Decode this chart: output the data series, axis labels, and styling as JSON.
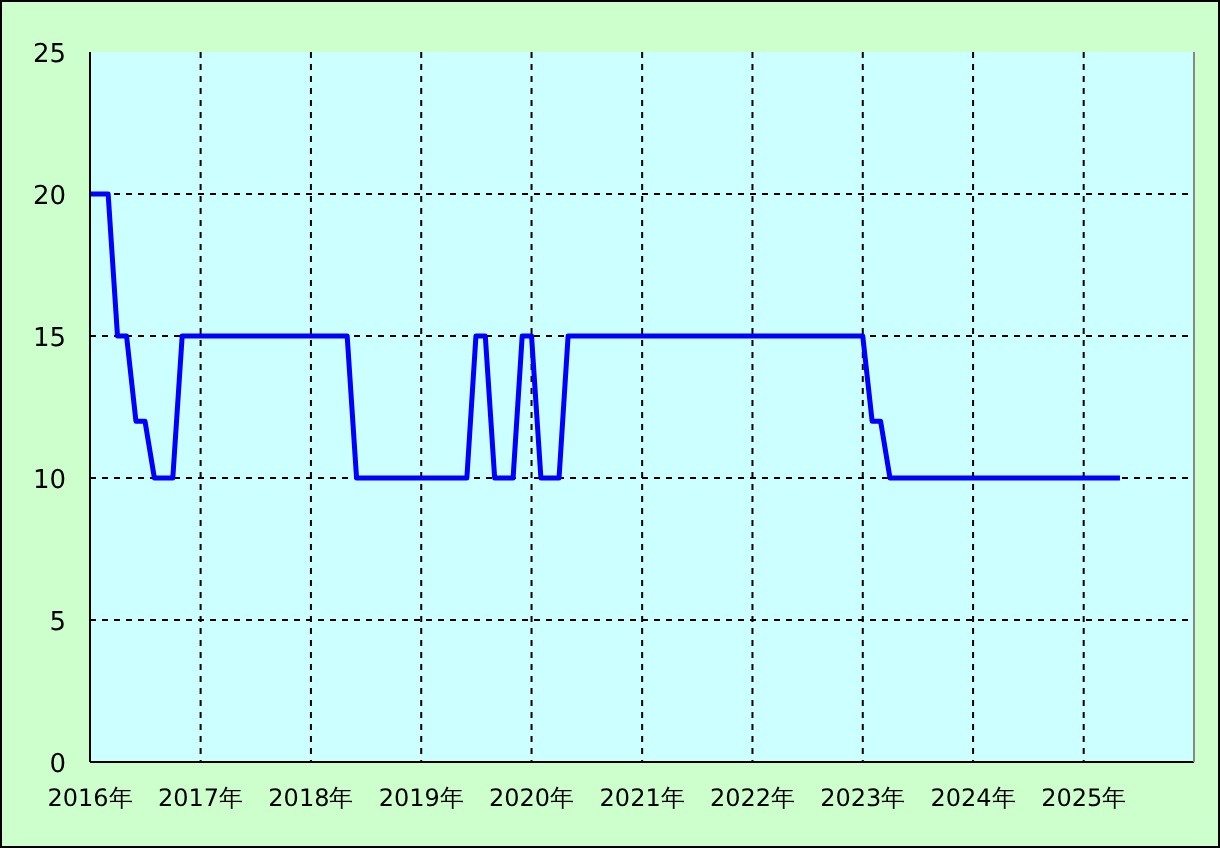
{
  "chart_data": {
    "type": "line",
    "x": [
      "2016-01",
      "2016-03",
      "2016-04",
      "2016-05",
      "2016-06",
      "2016-07",
      "2016-08",
      "2016-10",
      "2016-11",
      "2018-05",
      "2018-06",
      "2019-06",
      "2019-07",
      "2019-08",
      "2019-09",
      "2019-11",
      "2019-12",
      "2020-01",
      "2020-02",
      "2020-04",
      "2020-05",
      "2023-01",
      "2023-02",
      "2023-03",
      "2023-04",
      "2025-05"
    ],
    "series": [
      {
        "color": "#0000ff",
        "values": [
          20,
          20,
          15,
          15,
          12,
          12,
          10,
          10,
          15,
          15,
          10,
          10,
          15,
          15,
          10,
          10,
          15,
          15,
          10,
          10,
          15,
          15,
          12,
          12,
          10,
          10
        ]
      }
    ],
    "xlim": [
      "2016-01",
      "2026-01"
    ],
    "xticks": [
      {
        "value": "2016-01",
        "label": "2016年"
      },
      {
        "value": "2017-01",
        "label": "2017年"
      },
      {
        "value": "2018-01",
        "label": "2018年"
      },
      {
        "value": "2019-01",
        "label": "2019年"
      },
      {
        "value": "2020-01",
        "label": "2020年"
      },
      {
        "value": "2021-01",
        "label": "2021年"
      },
      {
        "value": "2022-01",
        "label": "2022年"
      },
      {
        "value": "2023-01",
        "label": "2023年"
      },
      {
        "value": "2024-01",
        "label": "2024年"
      },
      {
        "value": "2025-01",
        "label": "2025年"
      }
    ],
    "ylim": [
      0,
      25
    ],
    "yticks": [
      0,
      5,
      10,
      15,
      20,
      25
    ],
    "grid": true,
    "marker": "none",
    "line_style": "solid"
  }
}
